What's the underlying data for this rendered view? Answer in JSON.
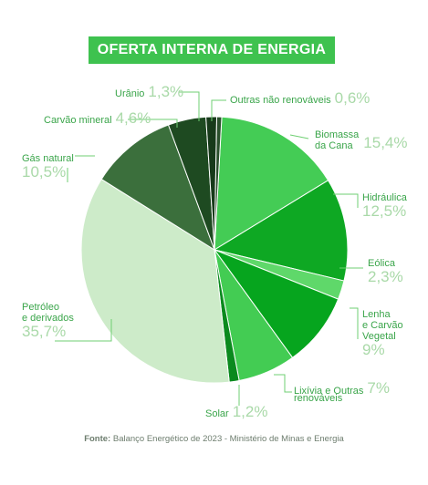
{
  "title": "OFERTA INTERNA DE ENERGIA",
  "source": {
    "prefix": "Fonte:",
    "text": "Balanço Energético de 2023 - Ministério de Minas e Energia"
  },
  "chart_data": {
    "type": "pie",
    "title": "OFERTA INTERNA DE ENERGIA",
    "slices": [
      {
        "label": "Biomassa da Cana",
        "line1": "Biomassa",
        "line2": "da Cana",
        "value": 15.4,
        "pct": "15,4%",
        "color": "#44cc55"
      },
      {
        "label": "Hidráulica",
        "line1": "Hidráulica",
        "line2": "",
        "value": 12.5,
        "pct": "12,5%",
        "color": "#0ea823"
      },
      {
        "label": "Eólica",
        "line1": "Eólica",
        "line2": "",
        "value": 2.3,
        "pct": "2,3%",
        "color": "#5fd86a"
      },
      {
        "label": "Lenha e Carvão Vegetal",
        "line1": "Lenha",
        "line2": "e Carvão",
        "line3": "Vegetal",
        "value": 9,
        "pct": "9%",
        "color": "#06a51e"
      },
      {
        "label": "Lixívia e Outras renováveis",
        "line1": "Lixívia e Outras",
        "line2": "renováveis",
        "value": 7,
        "pct": "7%",
        "color": "#43cc53"
      },
      {
        "label": "Solar",
        "line1": "Solar",
        "line2": "",
        "value": 1.2,
        "pct": "1,2%",
        "color": "#0b8a1e"
      },
      {
        "label": "Petróleo e derivados",
        "line1": "Petróleo",
        "line2": "e derivados",
        "value": 35.7,
        "pct": "35,7%",
        "color": "#cdebc9"
      },
      {
        "label": "Gás natural",
        "line1": "Gás natural",
        "line2": "",
        "value": 10.5,
        "pct": "10,5%",
        "color": "#3b6f3c"
      },
      {
        "label": "Carvão mineral",
        "line1": "Carvão mineral",
        "line2": "",
        "value": 4.6,
        "pct": "4,6%",
        "color": "#1e4a21"
      },
      {
        "label": "Urânio",
        "line1": "Urânio",
        "line2": "",
        "value": 1.3,
        "pct": "1,3%",
        "color": "#173a1a"
      },
      {
        "label": "Outras não renováveis",
        "line1": "Outras não renováveis",
        "line2": "",
        "value": 0.6,
        "pct": "0,6%",
        "color": "#2a4f2c"
      }
    ]
  }
}
